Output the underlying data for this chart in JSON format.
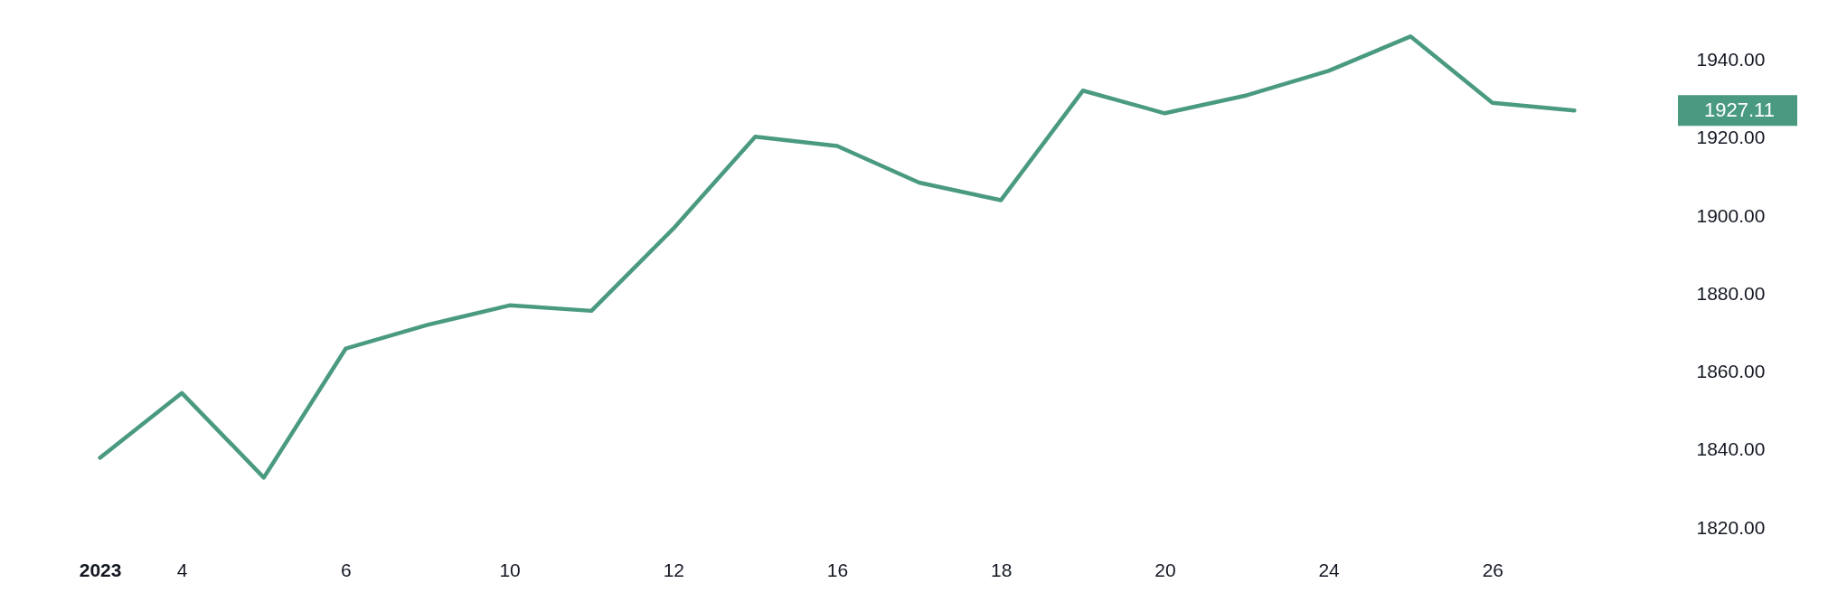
{
  "chart_data": {
    "type": "line",
    "categories": [
      "2023",
      "4",
      null,
      "6",
      null,
      "10",
      null,
      "12",
      null,
      "16",
      null,
      "18",
      null,
      "20",
      null,
      "24",
      null,
      "26",
      null
    ],
    "series": [
      {
        "color": "#4a9a82",
        "values": [
          1838,
          1854.6,
          1832.9,
          1866.0,
          1872.1,
          1877.1,
          1875.7,
          1896.8,
          1920.4,
          1918.0,
          1908.6,
          1904.1,
          1932.2,
          1926.4,
          1931.0,
          1937.3,
          1946.1,
          1929.1,
          1927.1
        ]
      }
    ],
    "ylim": [
      1820,
      1955
    ],
    "yticks": [
      {
        "value": 1820,
        "label": "1820.00"
      },
      {
        "value": 1840,
        "label": "1840.00"
      },
      {
        "value": 1860,
        "label": "1860.00"
      },
      {
        "value": 1880,
        "label": "1880.00"
      },
      {
        "value": 1900,
        "label": "1900.00"
      },
      {
        "value": 1920,
        "label": "1920.00"
      },
      {
        "value": 1940,
        "label": "1940.00"
      }
    ],
    "annotations": [
      "1927.11"
    ]
  }
}
